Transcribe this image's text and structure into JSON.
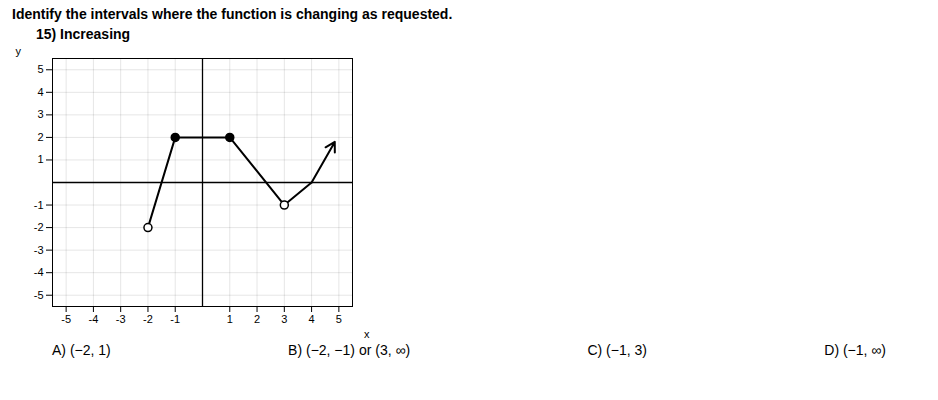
{
  "chart_data": {
    "type": "line",
    "title": "Identify the intervals where the function is changing as requested.",
    "subtitle": "15)  Increasing",
    "x": [
      -2,
      -1,
      1,
      3,
      4
    ],
    "values": [
      -2,
      2,
      2,
      -1,
      0
    ],
    "open_circles": {
      "x": [
        -2,
        3
      ],
      "values": [
        -2,
        -1
      ]
    },
    "closed_circles": {
      "x": [
        -1,
        1
      ],
      "values": [
        2,
        2
      ]
    },
    "arrow": {
      "x": [
        4,
        4.85
      ],
      "values": [
        0,
        1.8
      ]
    },
    "xlabel": "x",
    "ylabel": "y",
    "xlim": [
      -5.5,
      5.5
    ],
    "ylim": [
      -5.5,
      5.5
    ],
    "xticks": [
      -5,
      -4,
      -3,
      -2,
      -1,
      1,
      2,
      3,
      4,
      5
    ],
    "yticks": [
      -5,
      -4,
      -3,
      -2,
      -1,
      1,
      2,
      3,
      4,
      5
    ],
    "grid": true,
    "annotations": [
      "A) (−2, 1)",
      "B) (−2, −1) or (3, ∞)",
      "C) (−1, 3)",
      "D) (−1, ∞)"
    ]
  }
}
